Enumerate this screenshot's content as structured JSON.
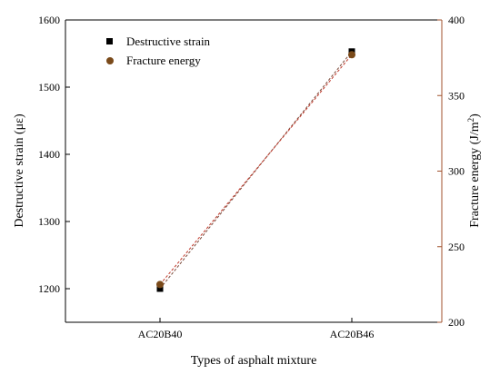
{
  "chart_data": {
    "type": "line",
    "categories": [
      "AC20B40",
      "AC20B46"
    ],
    "xlabel": "Types of asphalt mixture",
    "ylabel": "Destructive strain (με)",
    "ylabel_right_base": "Fracture energy (J/m",
    "ylabel_right_sup": "2",
    "ylabel_right_close": ")",
    "ylim": [
      1150,
      1600
    ],
    "ylim_right": [
      200,
      400
    ],
    "yticks": [
      "1200",
      "1300",
      "1400",
      "1500",
      "1600"
    ],
    "yticks_right": [
      "200",
      "250",
      "300",
      "350",
      "400"
    ],
    "grid": false,
    "legend_position": "top-left",
    "series": [
      {
        "name": "Destructive strain",
        "axis": "left",
        "marker": "square",
        "color": "#000000",
        "line_color": "#7a4a3a",
        "values": [
          1200,
          1553
        ]
      },
      {
        "name": "Fracture energy",
        "axis": "right",
        "marker": "circle",
        "color": "#7a4a1a",
        "line_color": "#c0392b",
        "values": [
          225,
          377
        ]
      }
    ],
    "colors": {
      "left_axis": "#000000",
      "right_axis": "#a0522d"
    }
  }
}
